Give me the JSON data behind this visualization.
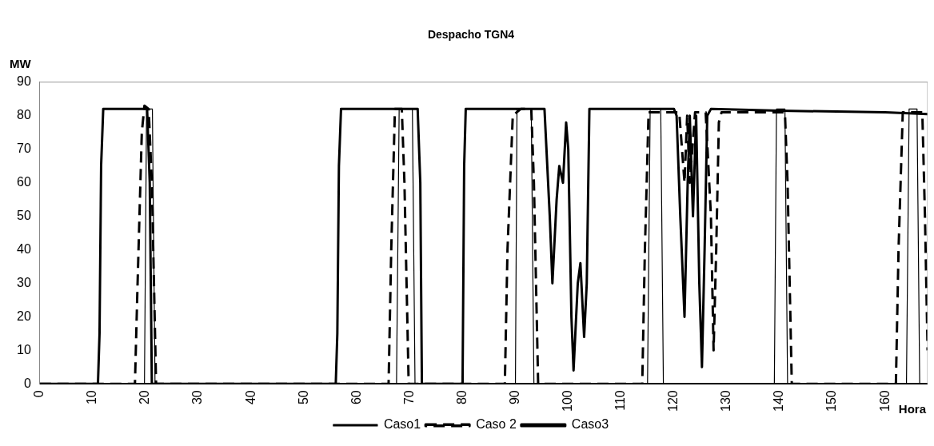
{
  "chart_data": {
    "type": "line",
    "title": "Despacho TGN4",
    "xlabel": "Hora",
    "ylabel": "MW",
    "legend": "bottom",
    "xlim": [
      0,
      168
    ],
    "ylim": [
      0,
      90
    ],
    "xticks": [
      0,
      10,
      20,
      30,
      40,
      50,
      60,
      70,
      80,
      90,
      100,
      110,
      120,
      130,
      140,
      150,
      160
    ],
    "yticks": [
      0,
      10,
      20,
      30,
      40,
      50,
      60,
      70,
      80,
      90
    ],
    "series": [
      {
        "name": "Caso1",
        "color": "#000000",
        "line_style": "solid",
        "x": [
          0,
          19.8,
          20.2,
          21.3,
          21.8,
          67.5,
          68,
          70.5,
          71,
          90,
          90.3,
          93,
          93.5,
          115,
          115.5,
          117.5,
          118,
          139,
          139.4,
          141,
          141.5,
          164,
          164.5,
          166,
          166.5
        ],
        "values": [
          0,
          0,
          82,
          82,
          0,
          0,
          82,
          82,
          0,
          0,
          82,
          82,
          0,
          0,
          82,
          82,
          0,
          0,
          82,
          82,
          0,
          0,
          82,
          82,
          0
        ]
      },
      {
        "name": "Caso 2",
        "color": "#000000",
        "line_style": "dashed",
        "x": [
          0,
          18,
          18.5,
          19.3,
          19.8,
          20.6,
          21.2,
          22,
          66,
          66.5,
          67.2,
          68.5,
          69,
          69.8,
          88,
          88.5,
          89.5,
          91,
          93,
          93.5,
          94.3,
          114,
          114.5,
          115.2,
          121,
          122,
          122.5,
          123,
          124,
          126,
          127,
          127.5,
          128,
          128.5,
          129,
          141,
          141.5,
          142.3,
          162,
          162.5,
          163.3,
          167,
          167.5,
          168
        ],
        "values": [
          0,
          0,
          30,
          75,
          83,
          82,
          60,
          0,
          0,
          40,
          82,
          82,
          60,
          0,
          0,
          40,
          80,
          82,
          82,
          60,
          0,
          0,
          40,
          81,
          81,
          60,
          80,
          60,
          81,
          81,
          50,
          10,
          40,
          78,
          81,
          81,
          60,
          0,
          0,
          40,
          81,
          81,
          50,
          10
        ]
      },
      {
        "name": "Caso3",
        "color": "#000000",
        "line_style": "solid",
        "x": [
          0,
          11,
          11.3,
          11.6,
          12,
          20.3,
          20.8,
          21.2,
          56,
          56.3,
          56.6,
          57,
          71.5,
          72,
          72.3,
          80,
          80.3,
          80.6,
          95.5,
          96.5,
          97,
          97.8,
          98.3,
          99,
          99.6,
          100,
          100.6,
          101,
          101.8,
          102.3,
          103,
          103.5,
          104,
          120,
          120.5,
          121.2,
          122,
          122.6,
          123,
          123.6,
          124.2,
          124.8,
          125.3,
          125.8,
          126.3,
          127,
          140,
          160,
          168
        ],
        "values": [
          0,
          0,
          15,
          65,
          82,
          82,
          60,
          0,
          0,
          15,
          65,
          82,
          82,
          60,
          0,
          0,
          65,
          82,
          82,
          50,
          30,
          55,
          65,
          60,
          78,
          70,
          20,
          4,
          30,
          36,
          14,
          30,
          82,
          82,
          80,
          50,
          20,
          60,
          80,
          50,
          80,
          30,
          5,
          40,
          80,
          82,
          81.5,
          81,
          80.5
        ]
      }
    ]
  }
}
